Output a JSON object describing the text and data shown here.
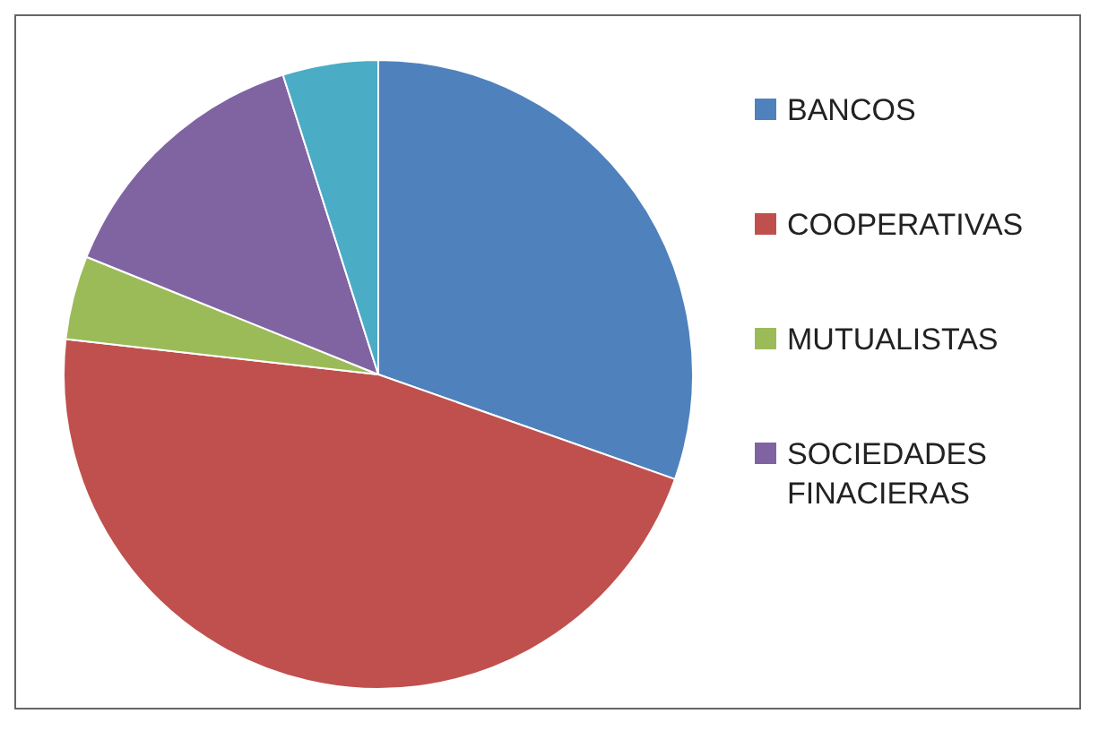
{
  "chart_data": {
    "type": "pie",
    "categories": [
      "BANCOS",
      "COOPERATIVAS",
      "MUTUALISTAS",
      "SOCIEDADES FINACIERAS",
      null
    ],
    "values": [
      30.4,
      46.4,
      4.3,
      14.0,
      4.9
    ],
    "colors": [
      "#4f81bd",
      "#c0504d",
      "#9bbb59",
      "#8064a2",
      "#4bacc6"
    ],
    "legend": "right"
  }
}
